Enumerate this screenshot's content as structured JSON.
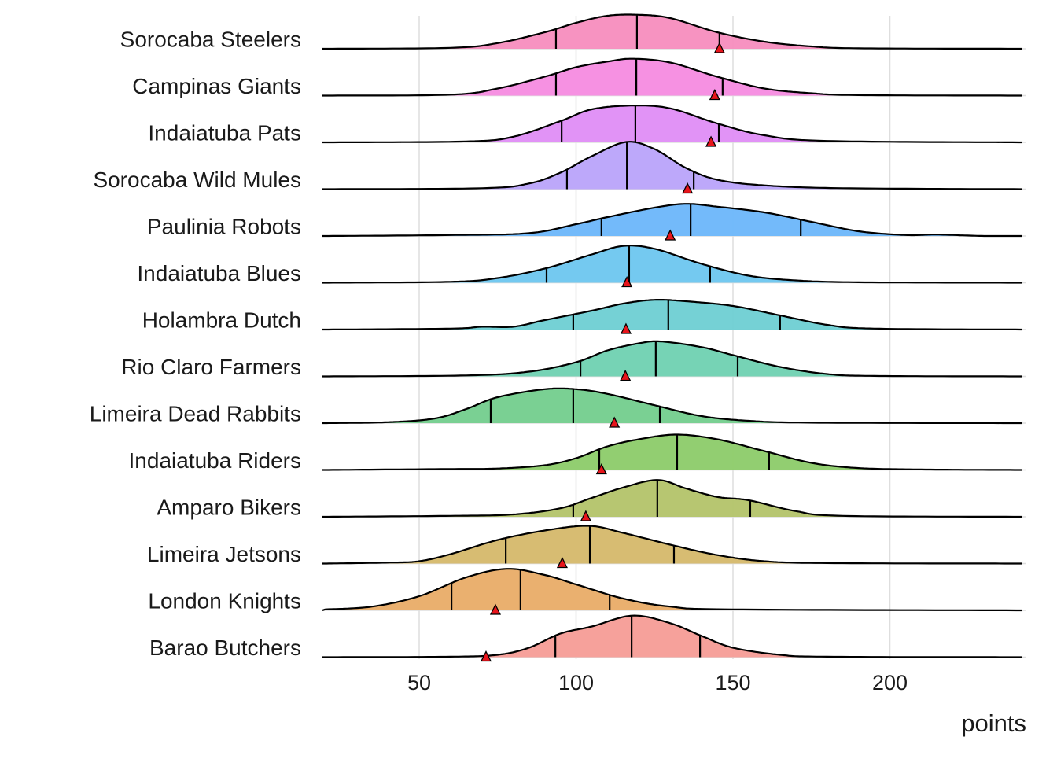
{
  "chart_data": {
    "type": "ridgeline",
    "title": "",
    "xlabel": "points",
    "ylabel": "",
    "xlim": [
      20,
      243
    ],
    "x_ticks": [
      50,
      100,
      150,
      200
    ],
    "grid": true,
    "legend": "none",
    "marker_color": "#E8141B",
    "series": [
      {
        "name": "Sorocaba Steelers",
        "color": "#F78DBE",
        "q1": 93.6,
        "median": 119.4,
        "q3": 145.7,
        "marker": 145.7,
        "density": [
          [
            20,
            0
          ],
          [
            60,
            0.02
          ],
          [
            75,
            0.12
          ],
          [
            90,
            0.35
          ],
          [
            100,
            0.55
          ],
          [
            110,
            0.7
          ],
          [
            120,
            0.72
          ],
          [
            130,
            0.65
          ],
          [
            145,
            0.35
          ],
          [
            160,
            0.15
          ],
          [
            175,
            0.05
          ],
          [
            190,
            0.01
          ],
          [
            243,
            0
          ]
        ]
      },
      {
        "name": "Campinas Giants",
        "color": "#F58BE0",
        "q1": 93.6,
        "median": 119.2,
        "q3": 146.7,
        "marker": 144.2,
        "density": [
          [
            20,
            0
          ],
          [
            60,
            0.02
          ],
          [
            75,
            0.15
          ],
          [
            90,
            0.4
          ],
          [
            100,
            0.6
          ],
          [
            110,
            0.72
          ],
          [
            118,
            0.78
          ],
          [
            130,
            0.7
          ],
          [
            145,
            0.4
          ],
          [
            160,
            0.15
          ],
          [
            175,
            0.05
          ],
          [
            190,
            0.01
          ],
          [
            243,
            0
          ]
        ]
      },
      {
        "name": "Indaiatuba Pats",
        "color": "#DF8DF5",
        "q1": 95.4,
        "median": 118.9,
        "q3": 145.5,
        "marker": 143.0,
        "density": [
          [
            20,
            0
          ],
          [
            65,
            0.02
          ],
          [
            80,
            0.12
          ],
          [
            95,
            0.45
          ],
          [
            105,
            0.7
          ],
          [
            118,
            0.78
          ],
          [
            130,
            0.72
          ],
          [
            145,
            0.4
          ],
          [
            160,
            0.15
          ],
          [
            180,
            0.03
          ],
          [
            243,
            0
          ]
        ]
      },
      {
        "name": "Sorocaba Wild Mules",
        "color": "#B9A3FA",
        "q1": 97.1,
        "median": 116.2,
        "q3": 137.5,
        "marker": 135.5,
        "density": [
          [
            20,
            0
          ],
          [
            70,
            0.02
          ],
          [
            85,
            0.12
          ],
          [
            95,
            0.35
          ],
          [
            105,
            0.7
          ],
          [
            116,
            1.0
          ],
          [
            125,
            0.85
          ],
          [
            135,
            0.45
          ],
          [
            145,
            0.2
          ],
          [
            160,
            0.08
          ],
          [
            185,
            0.02
          ],
          [
            243,
            0
          ]
        ]
      },
      {
        "name": "Paulinia Robots",
        "color": "#6BB6FA",
        "q1": 108.1,
        "median": 136.5,
        "q3": 171.6,
        "marker": 130.0,
        "density": [
          [
            20,
            0
          ],
          [
            60,
            0.02
          ],
          [
            85,
            0.06
          ],
          [
            100,
            0.25
          ],
          [
            110,
            0.4
          ],
          [
            125,
            0.6
          ],
          [
            135,
            0.68
          ],
          [
            145,
            0.62
          ],
          [
            160,
            0.5
          ],
          [
            175,
            0.3
          ],
          [
            190,
            0.1
          ],
          [
            205,
            0.02
          ],
          [
            215,
            0.03
          ],
          [
            230,
            0
          ],
          [
            243,
            0
          ]
        ]
      },
      {
        "name": "Indaiatuba Blues",
        "color": "#6DC6EF",
        "q1": 90.6,
        "median": 116.9,
        "q3": 142.7,
        "marker": 116.2,
        "density": [
          [
            20,
            0
          ],
          [
            60,
            0.02
          ],
          [
            75,
            0.1
          ],
          [
            90,
            0.3
          ],
          [
            105,
            0.6
          ],
          [
            115,
            0.78
          ],
          [
            125,
            0.72
          ],
          [
            140,
            0.4
          ],
          [
            155,
            0.15
          ],
          [
            170,
            0.05
          ],
          [
            190,
            0.01
          ],
          [
            243,
            0
          ]
        ]
      },
      {
        "name": "Holambra Dutch",
        "color": "#6ECFD3",
        "q1": 99.1,
        "median": 129.4,
        "q3": 165.0,
        "marker": 115.9,
        "density": [
          [
            20,
            0
          ],
          [
            60,
            0.02
          ],
          [
            70,
            0.06
          ],
          [
            80,
            0.06
          ],
          [
            90,
            0.2
          ],
          [
            105,
            0.4
          ],
          [
            115,
            0.55
          ],
          [
            125,
            0.63
          ],
          [
            135,
            0.6
          ],
          [
            150,
            0.5
          ],
          [
            165,
            0.3
          ],
          [
            180,
            0.1
          ],
          [
            195,
            0.02
          ],
          [
            243,
            0
          ]
        ]
      },
      {
        "name": "Rio Claro Farmers",
        "color": "#6FD1B1",
        "q1": 101.4,
        "median": 125.4,
        "q3": 151.5,
        "marker": 115.7,
        "density": [
          [
            20,
            0
          ],
          [
            65,
            0.02
          ],
          [
            85,
            0.1
          ],
          [
            100,
            0.3
          ],
          [
            110,
            0.55
          ],
          [
            120,
            0.7
          ],
          [
            127,
            0.74
          ],
          [
            140,
            0.62
          ],
          [
            150,
            0.45
          ],
          [
            165,
            0.2
          ],
          [
            180,
            0.05
          ],
          [
            195,
            0.01
          ],
          [
            243,
            0
          ]
        ]
      },
      {
        "name": "Limeira Dead Rabbits",
        "color": "#73CE8D",
        "q1": 72.8,
        "median": 99.1,
        "q3": 126.7,
        "marker": 112.2,
        "density": [
          [
            20,
            0
          ],
          [
            40,
            0.02
          ],
          [
            55,
            0.1
          ],
          [
            65,
            0.3
          ],
          [
            75,
            0.55
          ],
          [
            90,
            0.72
          ],
          [
            100,
            0.72
          ],
          [
            110,
            0.62
          ],
          [
            125,
            0.38
          ],
          [
            140,
            0.15
          ],
          [
            155,
            0.05
          ],
          [
            175,
            0.01
          ],
          [
            243,
            0
          ]
        ]
      },
      {
        "name": "Indaiatuba Riders",
        "color": "#8CCB69",
        "q1": 107.4,
        "median": 132.2,
        "q3": 161.5,
        "marker": 108.1,
        "density": [
          [
            20,
            0
          ],
          [
            60,
            0.02
          ],
          [
            75,
            0.03
          ],
          [
            90,
            0.1
          ],
          [
            100,
            0.25
          ],
          [
            110,
            0.5
          ],
          [
            120,
            0.65
          ],
          [
            132,
            0.75
          ],
          [
            145,
            0.65
          ],
          [
            160,
            0.4
          ],
          [
            175,
            0.15
          ],
          [
            190,
            0.04
          ],
          [
            210,
            0.01
          ],
          [
            243,
            0
          ]
        ]
      },
      {
        "name": "Amparo Bikers",
        "color": "#B3C369",
        "q1": 99.1,
        "median": 125.9,
        "q3": 155.5,
        "marker": 103.1,
        "density": [
          [
            20,
            0
          ],
          [
            60,
            0.02
          ],
          [
            80,
            0.05
          ],
          [
            95,
            0.18
          ],
          [
            105,
            0.4
          ],
          [
            115,
            0.62
          ],
          [
            126,
            0.78
          ],
          [
            135,
            0.6
          ],
          [
            145,
            0.42
          ],
          [
            155,
            0.35
          ],
          [
            170,
            0.12
          ],
          [
            185,
            0.02
          ],
          [
            243,
            0
          ]
        ]
      },
      {
        "name": "Limeira Jetsons",
        "color": "#D5B86A",
        "q1": 77.6,
        "median": 104.4,
        "q3": 131.2,
        "marker": 95.6,
        "density": [
          [
            20,
            0
          ],
          [
            40,
            0.02
          ],
          [
            50,
            0.05
          ],
          [
            60,
            0.2
          ],
          [
            75,
            0.5
          ],
          [
            90,
            0.7
          ],
          [
            104,
            0.8
          ],
          [
            115,
            0.65
          ],
          [
            130,
            0.4
          ],
          [
            145,
            0.18
          ],
          [
            160,
            0.05
          ],
          [
            180,
            0.01
          ],
          [
            243,
            0
          ]
        ]
      },
      {
        "name": "London Knights",
        "color": "#E9AC67",
        "q1": 60.3,
        "median": 82.3,
        "q3": 110.7,
        "marker": 74.3,
        "density": [
          [
            20,
            0.02
          ],
          [
            35,
            0.08
          ],
          [
            50,
            0.3
          ],
          [
            65,
            0.7
          ],
          [
            78,
            0.88
          ],
          [
            90,
            0.75
          ],
          [
            100,
            0.55
          ],
          [
            115,
            0.25
          ],
          [
            130,
            0.08
          ],
          [
            150,
            0.02
          ],
          [
            243,
            0
          ]
        ]
      },
      {
        "name": "Barao Butchers",
        "color": "#F69C96",
        "q1": 93.4,
        "median": 117.7,
        "q3": 139.5,
        "marker": 71.3,
        "density": [
          [
            20,
            0
          ],
          [
            60,
            0.01
          ],
          [
            75,
            0.05
          ],
          [
            85,
            0.2
          ],
          [
            95,
            0.5
          ],
          [
            105,
            0.65
          ],
          [
            118,
            0.88
          ],
          [
            130,
            0.72
          ],
          [
            140,
            0.45
          ],
          [
            150,
            0.2
          ],
          [
            165,
            0.05
          ],
          [
            180,
            0.01
          ],
          [
            243,
            0
          ]
        ]
      }
    ]
  }
}
